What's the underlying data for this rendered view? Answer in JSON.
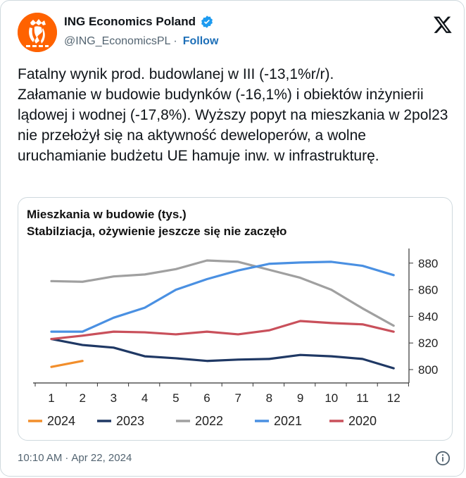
{
  "account": {
    "name": "ING Economics Poland",
    "handle": "@ING_EconomicsPL",
    "separator": "·",
    "follow_label": "Follow",
    "avatar_icon": "ing-lion-logo-icon",
    "verified_icon": "verified-badge-icon",
    "brand_color": "#ff6200"
  },
  "platform_icon": "x-logo-icon",
  "tweet": {
    "text": "Fatalny wynik prod. budowlanej w III (-13,1%r/r).\nZałamanie w budowie budynków (-16,1%) i obiektów inżynierii lądowej i wodnej (-17,8%). Wyższy popyt na mieszkania w 2pol23 nie przełożył się na aktywność deweloperów, a wolne uruchamianie budżetu UE hamuje inw. w infrastrukturę."
  },
  "chart_data": {
    "type": "line",
    "title": "Mieszkania w budowie (tys.)",
    "subtitle": "Stabilziacja, ożywienie jeszcze się nie zaczęło",
    "categories": [
      "1",
      "2",
      "3",
      "4",
      "5",
      "6",
      "7",
      "8",
      "9",
      "10",
      "11",
      "12"
    ],
    "y_ticks": [
      "800",
      "820",
      "840",
      "860",
      "880"
    ],
    "ylim": [
      795,
      890
    ],
    "y_axis_side": "right",
    "grid": false,
    "legend_position": "bottom",
    "series": [
      {
        "name": "2024",
        "color": "#f28e2b",
        "values": [
          802,
          806.5,
          null,
          null,
          null,
          null,
          null,
          null,
          null,
          null,
          null,
          null
        ]
      },
      {
        "name": "2023",
        "color": "#1f3864",
        "values": [
          823,
          818.5,
          816.5,
          810,
          808.5,
          806.5,
          807.5,
          808,
          811,
          810,
          808,
          801
        ]
      },
      {
        "name": "2022",
        "color": "#a0a0a0",
        "values": [
          866.5,
          866,
          870,
          871.5,
          875.5,
          882,
          881,
          875,
          869,
          860,
          846,
          833
        ]
      },
      {
        "name": "2021",
        "color": "#4a90e2",
        "values": [
          828.5,
          828.5,
          839,
          846.5,
          860,
          868,
          874.5,
          879.5,
          880.5,
          881,
          878,
          871
        ]
      },
      {
        "name": "2020",
        "color": "#c9505b",
        "values": [
          823,
          825.5,
          828.5,
          828,
          826.5,
          828.5,
          826.5,
          829.5,
          836.5,
          835,
          834,
          828.5
        ]
      }
    ]
  },
  "footer": {
    "time": "10:10 AM",
    "separator": "·",
    "date": "Apr 22, 2024",
    "info_icon": "info-circle-icon"
  }
}
